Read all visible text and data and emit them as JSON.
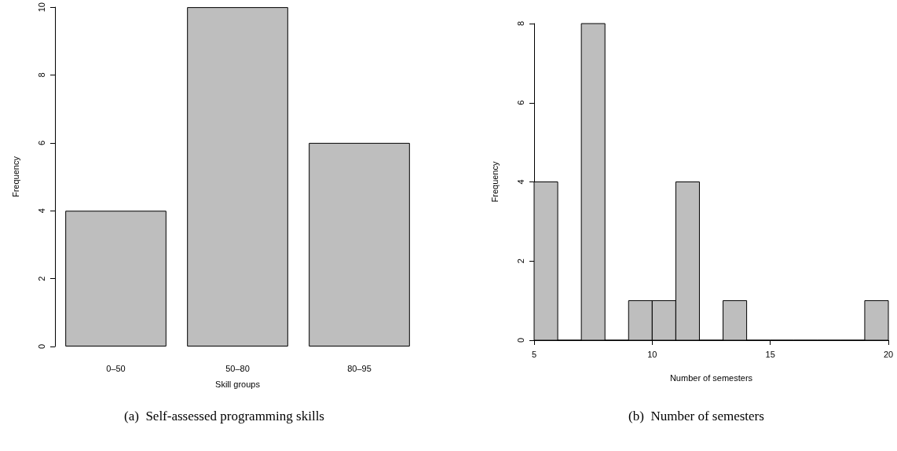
{
  "chart_data": [
    {
      "type": "bar",
      "xlabel": "Skill groups",
      "ylabel": "Frequency",
      "categories": [
        "0–50",
        "50–80",
        "80–95"
      ],
      "values": [
        4,
        10,
        6
      ],
      "color": "#bebebe",
      "ylim": [
        0,
        10
      ],
      "yticks": [
        0,
        2,
        4,
        6,
        8,
        10
      ],
      "grid": false,
      "annotations": [
        "(a)  Self-assessed programming skills"
      ]
    },
    {
      "type": "histogram",
      "xlabel": "Number of semesters",
      "ylabel": "Frequency",
      "bins": [
        5,
        6,
        7,
        8,
        9,
        10,
        11,
        12,
        13,
        14,
        15,
        16,
        17,
        18,
        19,
        20
      ],
      "values": [
        4,
        0,
        8,
        0,
        1,
        1,
        4,
        0,
        1,
        0,
        0,
        0,
        0,
        0,
        1
      ],
      "color": "#bebebe",
      "xlim": [
        5,
        20
      ],
      "xticks": [
        5,
        10,
        15,
        20
      ],
      "ylim": [
        0,
        8
      ],
      "yticks": [
        0,
        2,
        4,
        6,
        8
      ],
      "grid": false,
      "annotations": [
        "(b)  Number of semesters"
      ]
    }
  ]
}
